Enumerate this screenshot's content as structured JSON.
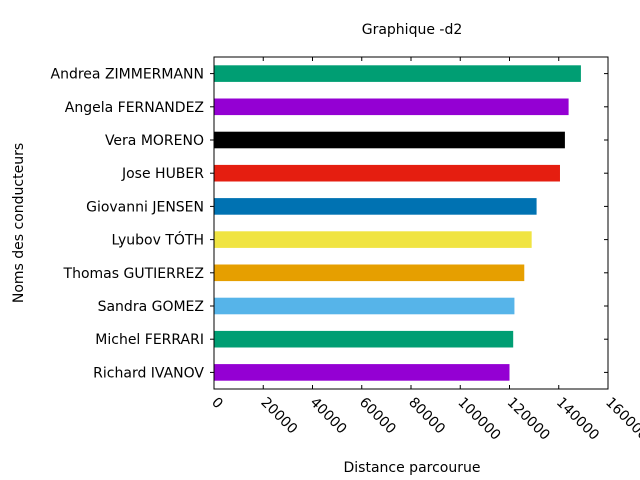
{
  "chart_data": {
    "type": "bar",
    "orientation": "horizontal",
    "title": "Graphique -d2",
    "xlabel": "Distance parcourue",
    "ylabel": "Noms des conducteurs",
    "xlim": [
      0,
      160000
    ],
    "xticks": [
      0,
      20000,
      40000,
      60000,
      80000,
      100000,
      120000,
      140000,
      160000
    ],
    "grid": false,
    "categories": [
      "Andrea ZIMMERMANN",
      "Angela FERNANDEZ",
      "Vera MORENO",
      "Jose HUBER",
      "Giovanni JENSEN",
      "Lyubov TÓTH",
      "Thomas GUTIERREZ",
      "Sandra GOMEZ",
      "Michel FERRARI",
      "Richard IVANOV"
    ],
    "values": [
      149000,
      144000,
      142500,
      140500,
      131000,
      129000,
      126000,
      122000,
      121500,
      120000
    ],
    "colors": [
      "#009e73",
      "#9400d3",
      "#000000",
      "#e51e10",
      "#0072b2",
      "#f0e442",
      "#e69f00",
      "#56b4e9",
      "#009e73",
      "#9400d3"
    ]
  }
}
